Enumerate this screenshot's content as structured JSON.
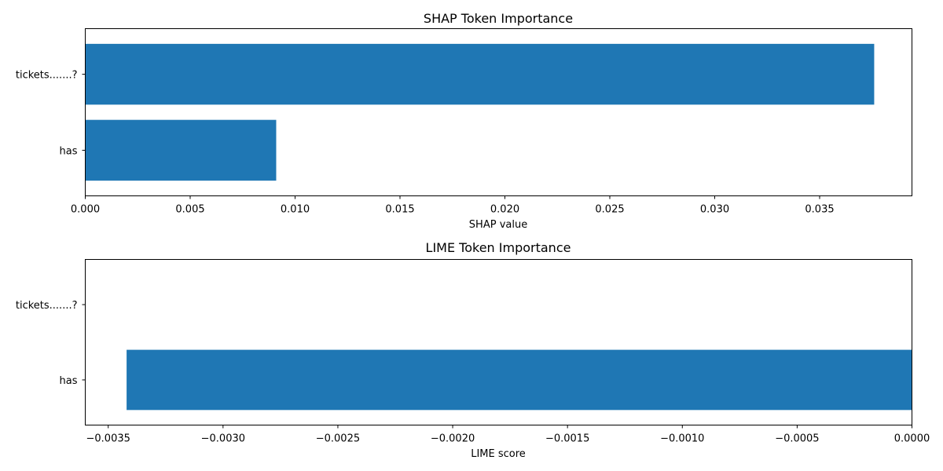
{
  "chart_data": [
    {
      "type": "bar",
      "orientation": "horizontal",
      "title": "SHAP Token Importance",
      "xlabel": "SHAP value",
      "ylabel": "",
      "categories": [
        "tickets.......?",
        "has"
      ],
      "values": [
        0.0376,
        0.0091
      ],
      "xlim": [
        0,
        0.0394
      ],
      "xticks": [
        "0.000",
        "0.005",
        "0.010",
        "0.015",
        "0.020",
        "0.025",
        "0.030",
        "0.035"
      ],
      "grid": false,
      "color": "#1f77b4"
    },
    {
      "type": "bar",
      "orientation": "horizontal",
      "title": "LIME Token Importance",
      "xlabel": "LIME score",
      "ylabel": "",
      "categories": [
        "tickets.......?",
        "has"
      ],
      "values": [
        0,
        -0.00342
      ],
      "xlim": [
        -0.0036,
        0
      ],
      "xticks": [
        "−0.0035",
        "−0.0030",
        "−0.0025",
        "−0.0020",
        "−0.0015",
        "−0.0010",
        "−0.0005",
        "0.0000"
      ],
      "grid": false,
      "color": "#1f77b4"
    }
  ]
}
